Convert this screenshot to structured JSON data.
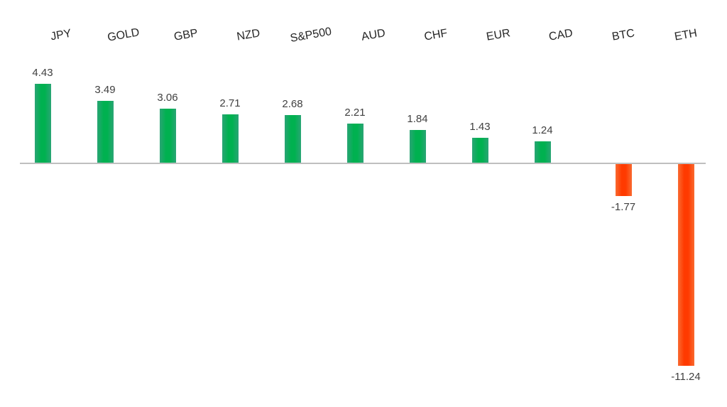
{
  "chart_data": {
    "type": "bar",
    "title": "",
    "xlabel": "",
    "ylabel": "",
    "categories": [
      "JPY",
      "GOLD",
      "GBP",
      "NZD",
      "S&P500",
      "AUD",
      "CHF",
      "EUR",
      "CAD",
      "BTC",
      "ETH"
    ],
    "values": [
      4.43,
      3.49,
      3.06,
      2.71,
      2.68,
      2.21,
      1.84,
      1.43,
      1.24,
      -1.77,
      -11.24
    ],
    "value_labels": [
      "4.43",
      "3.49",
      "3.06",
      "2.71",
      "2.68",
      "2.21",
      "1.84",
      "1.43",
      "1.24",
      "-1.77",
      "-11.24"
    ],
    "baseline": 0,
    "ylim": [
      -11.24,
      4.43
    ],
    "grid": false,
    "legend": false,
    "category_labels_position": "top",
    "category_labels_rotation_deg": -10,
    "colors": {
      "positive_core": "#00b150",
      "positive_edge": "#2aa575",
      "negative_core": "#ff3a00",
      "negative_edge": "#f96b31",
      "axis_line": "#bfbfbf",
      "value_text": "#404040",
      "category_text": "#262626",
      "background": "#ffffff"
    }
  }
}
